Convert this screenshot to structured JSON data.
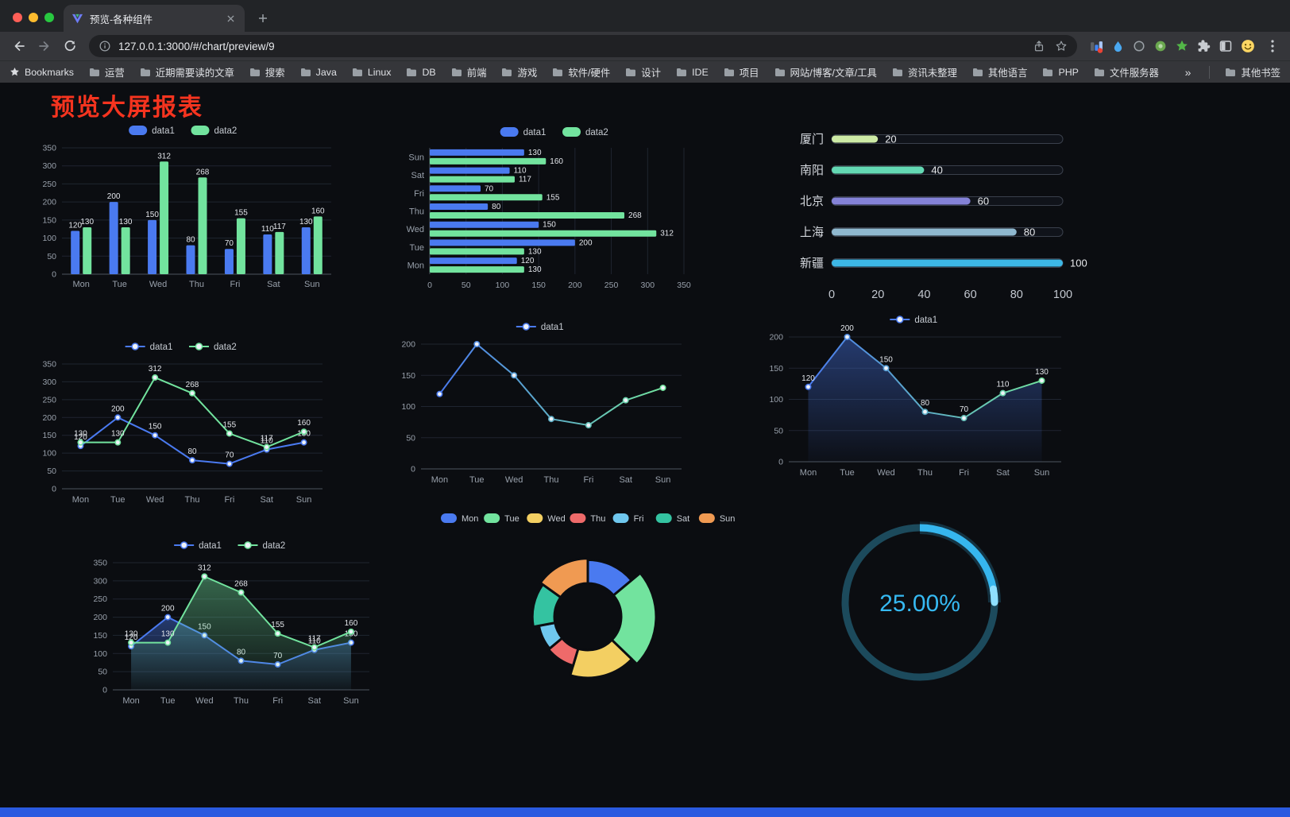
{
  "browser": {
    "tab_title": "预览-各种组件",
    "url": "127.0.0.1:3000/#/chart/preview/9",
    "bookmarks_bar": {
      "first_item": "Bookmarks",
      "folders": [
        "运营",
        "近期需要读的文章",
        "搜索",
        "Java",
        "Linux",
        "DB",
        "前端",
        "游戏",
        "软件/硬件",
        "设计",
        "IDE",
        "项目",
        "网站/博客/文章/工具",
        "资讯未整理",
        "其他语言",
        "PHP",
        "文件服务器"
      ],
      "overflow_chevron": "»",
      "other_bookmarks": "其他书签"
    }
  },
  "page": {
    "title": "预览大屏报表"
  },
  "chart_data": [
    {
      "name": "grouped-bar",
      "type": "bar",
      "render": "bar",
      "categories": [
        "Mon",
        "Tue",
        "Wed",
        "Thu",
        "Fri",
        "Sat",
        "Sun"
      ],
      "series": [
        {
          "name": "data1",
          "color": "#4a7af0",
          "values": [
            120,
            200,
            150,
            80,
            70,
            110,
            130
          ]
        },
        {
          "name": "data2",
          "color": "#72e39e",
          "values": [
            130,
            130,
            312,
            268,
            155,
            117,
            160
          ]
        }
      ],
      "ylim": [
        0,
        350
      ],
      "yticks": [
        0,
        50,
        100,
        150,
        200,
        250,
        300,
        350
      ],
      "value_labels": true,
      "legend_position": "top",
      "grid": true
    },
    {
      "name": "horizontal-bar",
      "type": "bar",
      "render": "hbar",
      "categories": [
        "Mon",
        "Tue",
        "Wed",
        "Thu",
        "Fri",
        "Sat",
        "Sun"
      ],
      "series": [
        {
          "name": "data1",
          "color": "#4a7af0",
          "values": [
            120,
            200,
            150,
            80,
            70,
            110,
            130
          ]
        },
        {
          "name": "data2",
          "color": "#72e39e",
          "values": [
            130,
            130,
            312,
            268,
            155,
            117,
            160
          ]
        }
      ],
      "xlim": [
        0,
        350
      ],
      "xticks": [
        0,
        50,
        100,
        150,
        200,
        250,
        300,
        350
      ],
      "value_labels": true,
      "legend_position": "top",
      "grid": true
    },
    {
      "name": "city-progress",
      "type": "bar",
      "render": "progress",
      "items": [
        {
          "label": "厦门",
          "value": 20,
          "color": "#cdeaa5"
        },
        {
          "label": "南阳",
          "value": 40,
          "color": "#63d8b3"
        },
        {
          "label": "北京",
          "value": 60,
          "color": "#8482d7"
        },
        {
          "label": "上海",
          "value": 80,
          "color": "#8fb8cf"
        },
        {
          "label": "新疆",
          "value": 100,
          "color": "#3db7e6"
        }
      ],
      "max": 100,
      "xticks": [
        0,
        20,
        40,
        60,
        80,
        100
      ]
    },
    {
      "name": "line-dual",
      "type": "line",
      "render": "line",
      "categories": [
        "Mon",
        "Tue",
        "Wed",
        "Thu",
        "Fri",
        "Sat",
        "Sun"
      ],
      "series": [
        {
          "name": "data1",
          "color": "#4a7af0",
          "values": [
            120,
            200,
            150,
            80,
            70,
            110,
            130
          ]
        },
        {
          "name": "data2",
          "color": "#72e39e",
          "values": [
            130,
            130,
            312,
            268,
            155,
            117,
            160
          ]
        }
      ],
      "ylim": [
        0,
        350
      ],
      "yticks": [
        0,
        50,
        100,
        150,
        200,
        250,
        300,
        350
      ],
      "value_labels": true,
      "legend_position": "top",
      "grid": true
    },
    {
      "name": "line-gradient",
      "type": "line",
      "render": "line",
      "categories": [
        "Mon",
        "Tue",
        "Wed",
        "Thu",
        "Fri",
        "Sat",
        "Sun"
      ],
      "series": [
        {
          "name": "data1",
          "color": "#4a7af0",
          "values": [
            120,
            200,
            150,
            80,
            70,
            110,
            130
          ]
        }
      ],
      "ylim": [
        0,
        200
      ],
      "yticks": [
        0,
        50,
        100,
        150,
        200
      ],
      "gradient_stroke": [
        "#4a7af0",
        "#72e39e"
      ],
      "value_labels": false,
      "legend_position": "top",
      "grid": true
    },
    {
      "name": "area-single",
      "type": "area",
      "render": "line",
      "categories": [
        "Mon",
        "Tue",
        "Wed",
        "Thu",
        "Fri",
        "Sat",
        "Sun"
      ],
      "series": [
        {
          "name": "data1",
          "color": "#4a7af0",
          "values": [
            120,
            200,
            150,
            80,
            70,
            110,
            130
          ],
          "area": true
        }
      ],
      "ylim": [
        0,
        200
      ],
      "yticks": [
        0,
        50,
        100,
        150,
        200
      ],
      "gradient_stroke": [
        "#4a7af0",
        "#72e39e"
      ],
      "value_labels": true,
      "legend_position": "top",
      "grid": true
    },
    {
      "name": "area-dual",
      "type": "area",
      "render": "line",
      "categories": [
        "Mon",
        "Tue",
        "Wed",
        "Thu",
        "Fri",
        "Sat",
        "Sun"
      ],
      "series": [
        {
          "name": "data1",
          "color": "#4a7af0",
          "values": [
            120,
            200,
            150,
            80,
            70,
            110,
            130
          ],
          "area": true
        },
        {
          "name": "data2",
          "color": "#72e39e",
          "values": [
            130,
            130,
            312,
            268,
            155,
            117,
            160
          ],
          "area": true
        }
      ],
      "ylim": [
        0,
        350
      ],
      "yticks": [
        0,
        50,
        100,
        150,
        200,
        250,
        300,
        350
      ],
      "value_labels": true,
      "legend_position": "top",
      "grid": true
    },
    {
      "name": "rose-donut",
      "type": "pie",
      "render": "pie",
      "categories": [
        "Mon",
        "Tue",
        "Wed",
        "Thu",
        "Fri",
        "Sat",
        "Sun"
      ],
      "values": [
        120,
        200,
        150,
        80,
        70,
        110,
        130
      ],
      "colors": [
        "#4a7af0",
        "#72e39e",
        "#f3cf62",
        "#ee6a6a",
        "#6fc7ee",
        "#34c3a1",
        "#f09a52"
      ],
      "rose": true,
      "legend_position": "top"
    },
    {
      "name": "progress-ring",
      "type": "gauge",
      "render": "gauge",
      "value": 25,
      "display": "25.00%",
      "color": "#36b6ee",
      "track_color": "#1c4a5c"
    }
  ]
}
